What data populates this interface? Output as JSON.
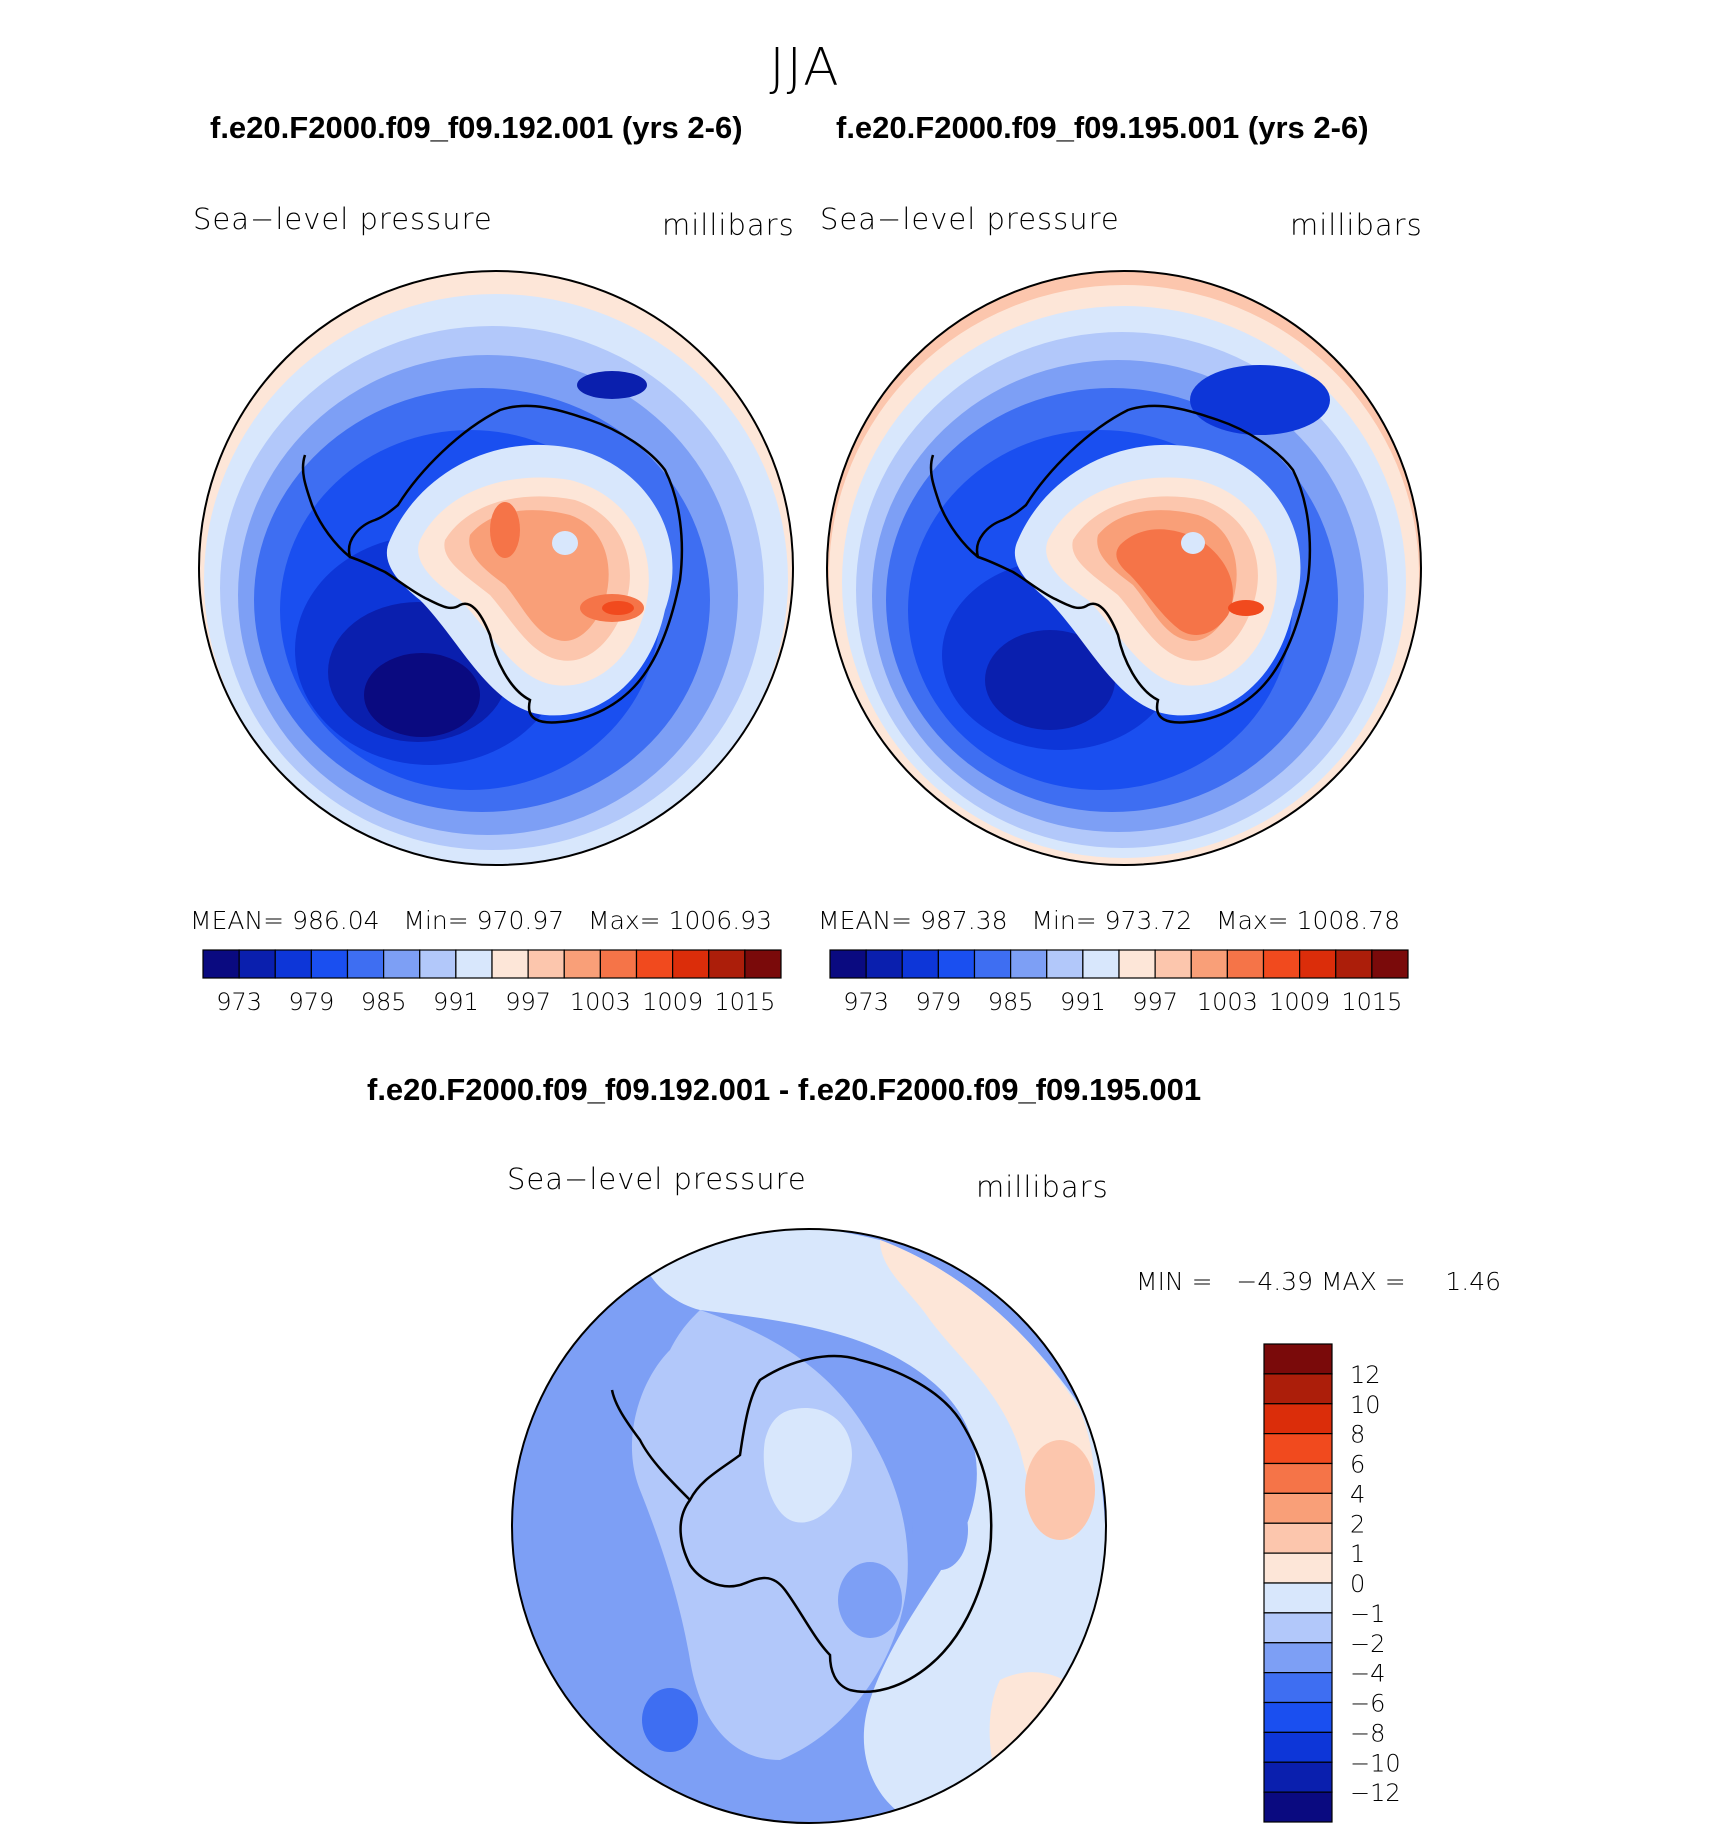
{
  "title": "JJA",
  "colors": [
    "#0a0a80",
    "#0a1fae",
    "#0d36d8",
    "#1a4ff0",
    "#3e6ef2",
    "#7d9ff5",
    "#b2c8fa",
    "#d8e7fc",
    "#fde6d8",
    "#fcc6ad",
    "#f99f78",
    "#f57448",
    "#f14a1e",
    "#db2d0a",
    "#ac1e0a",
    "#7a0a0a"
  ],
  "panels": [
    {
      "case_title": "f.e20.F2000.f09_f09.192.001 (yrs 2-6)",
      "variable": "Sea−level pressure",
      "units": "millibars",
      "mean_label": "MEAN=",
      "mean": "986.04",
      "min_label": "Min=",
      "min": "970.97",
      "max_label": "Max=",
      "max": "1006.93"
    },
    {
      "case_title": "f.e20.F2000.f09_f09.195.001 (yrs 2-6)",
      "variable": "Sea−level pressure",
      "units": "millibars",
      "mean_label": "MEAN=",
      "mean": "987.38",
      "min_label": "Min=",
      "min": "973.72",
      "max_label": "Max=",
      "max": "1008.78"
    }
  ],
  "diff": {
    "title": "f.e20.F2000.f09_f09.192.001 - f.e20.F2000.f09_f09.195.001",
    "variable": "Sea−level pressure",
    "units": "millibars",
    "min_label": "MIN =",
    "min": "−4.39",
    "max_label": "MAX =",
    "max": "1.46"
  },
  "chart_data": [
    {
      "type": "heatmap",
      "projection": "south polar stereographic",
      "title": "f.e20.F2000.f09_f09.192.001 (yrs 2-6)",
      "variable": "Sea-level pressure",
      "units": "millibars",
      "stats": {
        "mean": 986.04,
        "min": 970.97,
        "max": 1006.93
      },
      "colorbar_ticks": [
        "973",
        "979",
        "985",
        "991",
        "997",
        "1003",
        "1009",
        "1015"
      ],
      "levels": [
        970,
        973,
        976,
        979,
        982,
        985,
        988,
        991,
        994,
        997,
        1000,
        1003,
        1006,
        1009,
        1012,
        1015
      ]
    },
    {
      "type": "heatmap",
      "projection": "south polar stereographic",
      "title": "f.e20.F2000.f09_f09.195.001 (yrs 2-6)",
      "variable": "Sea-level pressure",
      "units": "millibars",
      "stats": {
        "mean": 987.38,
        "min": 973.72,
        "max": 1008.78
      },
      "colorbar_ticks": [
        "973",
        "979",
        "985",
        "991",
        "997",
        "1003",
        "1009",
        "1015"
      ],
      "levels": [
        970,
        973,
        976,
        979,
        982,
        985,
        988,
        991,
        994,
        997,
        1000,
        1003,
        1006,
        1009,
        1012,
        1015
      ]
    },
    {
      "type": "heatmap",
      "projection": "south polar stereographic",
      "title": "f.e20.F2000.f09_f09.192.001 - f.e20.F2000.f09_f09.195.001",
      "variable": "Sea-level pressure",
      "units": "millibars",
      "stats": {
        "min": -4.39,
        "max": 1.46
      },
      "colorbar_ticks": [
        "12",
        "10",
        "8",
        "6",
        "4",
        "2",
        "1",
        "0",
        "−1",
        "−2",
        "−4",
        "−6",
        "−8",
        "−10",
        "−12"
      ],
      "levels": [
        -12,
        -10,
        -8,
        -6,
        -4,
        -2,
        -1,
        0,
        1,
        2,
        4,
        6,
        8,
        10,
        12
      ]
    }
  ]
}
